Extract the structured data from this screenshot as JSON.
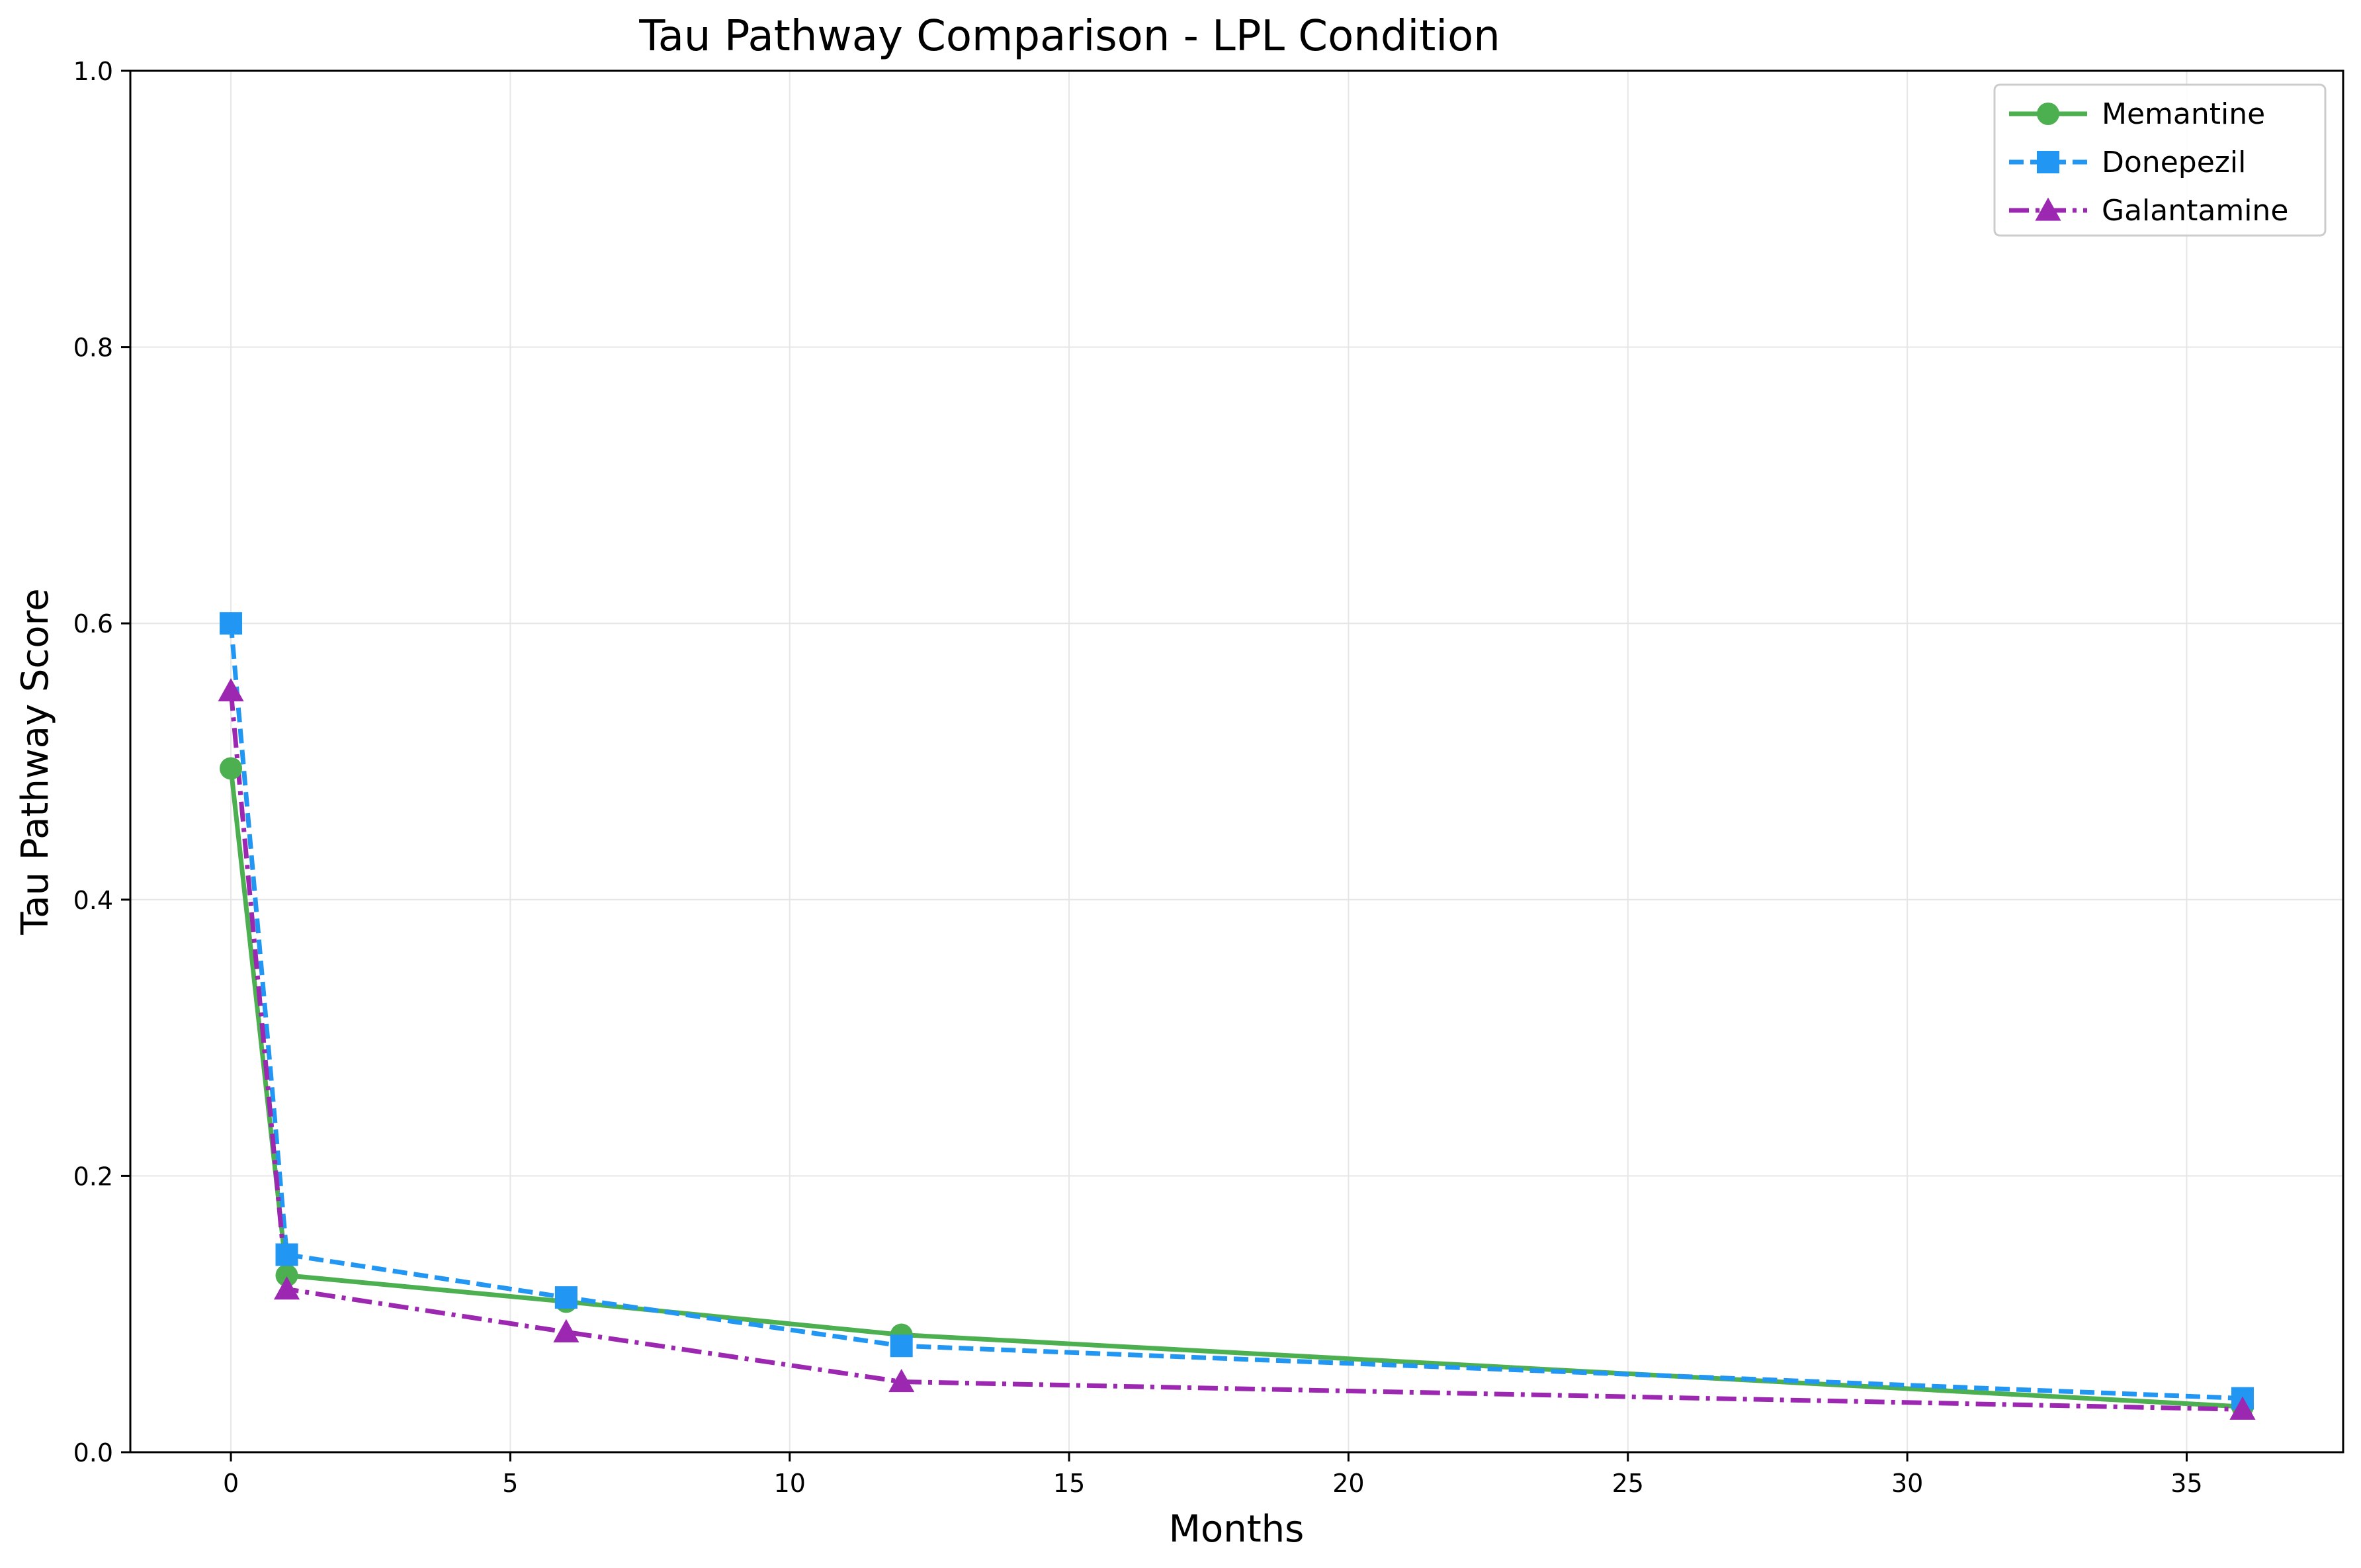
{
  "chart_data": {
    "type": "line",
    "title": "Tau Pathway Comparison - LPL Condition",
    "xlabel": "Months",
    "ylabel": "Tau Pathway Score",
    "xlim": [
      -1.8,
      37.8
    ],
    "ylim": [
      0.0,
      1.0
    ],
    "xticks": [
      0,
      5,
      10,
      15,
      20,
      25,
      30,
      35
    ],
    "yticks": [
      0.0,
      0.2,
      0.4,
      0.6,
      0.8,
      1.0
    ],
    "xtick_labels": [
      "0",
      "5",
      "10",
      "15",
      "20",
      "25",
      "30",
      "35"
    ],
    "ytick_labels": [
      "0.0",
      "0.2",
      "0.4",
      "0.6",
      "0.8",
      "1.0"
    ],
    "grid": true,
    "legend_position": "top-right",
    "x": [
      0,
      1,
      6,
      12,
      36
    ],
    "series": [
      {
        "name": "Memantine",
        "values": [
          0.495,
          0.128,
          0.109,
          0.085,
          0.033
        ],
        "color": "#4caf50",
        "marker": "circle",
        "dash": "solid"
      },
      {
        "name": "Donepezil",
        "values": [
          0.6,
          0.143,
          0.112,
          0.077,
          0.039
        ],
        "color": "#2196f3",
        "marker": "square",
        "dash": "dashed"
      },
      {
        "name": "Galantamine",
        "values": [
          0.551,
          0.118,
          0.087,
          0.051,
          0.031
        ],
        "color": "#9c27b0",
        "marker": "triangle",
        "dash": "dashdot"
      }
    ]
  }
}
